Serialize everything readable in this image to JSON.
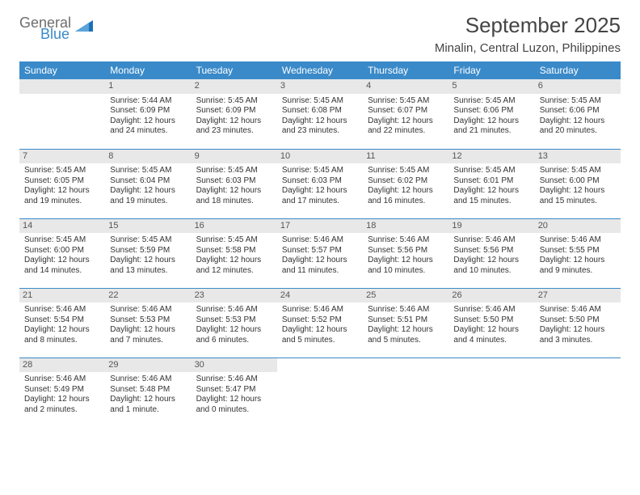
{
  "logo": {
    "general": "General",
    "blue": "Blue",
    "tri_color": "#1d6fb8"
  },
  "title": "September 2025",
  "subtitle": "Minalin, Central Luzon, Philippines",
  "colors": {
    "header_bg": "#3a8ac9",
    "header_fg": "#ffffff",
    "daynum_bg": "#e8e8e8",
    "row_divider": "#3a8ac9",
    "body_text": "#333333"
  },
  "fonts": {
    "title_pt": 26,
    "subtitle_pt": 15,
    "th_pt": 12,
    "daynum_pt": 11,
    "cell_pt": 10
  },
  "day_headers": [
    "Sunday",
    "Monday",
    "Tuesday",
    "Wednesday",
    "Thursday",
    "Friday",
    "Saturday"
  ],
  "weeks": [
    [
      null,
      {
        "n": "1",
        "sr": "Sunrise: 5:44 AM",
        "ss": "Sunset: 6:09 PM",
        "d1": "Daylight: 12 hours",
        "d2": "and 24 minutes."
      },
      {
        "n": "2",
        "sr": "Sunrise: 5:45 AM",
        "ss": "Sunset: 6:09 PM",
        "d1": "Daylight: 12 hours",
        "d2": "and 23 minutes."
      },
      {
        "n": "3",
        "sr": "Sunrise: 5:45 AM",
        "ss": "Sunset: 6:08 PM",
        "d1": "Daylight: 12 hours",
        "d2": "and 23 minutes."
      },
      {
        "n": "4",
        "sr": "Sunrise: 5:45 AM",
        "ss": "Sunset: 6:07 PM",
        "d1": "Daylight: 12 hours",
        "d2": "and 22 minutes."
      },
      {
        "n": "5",
        "sr": "Sunrise: 5:45 AM",
        "ss": "Sunset: 6:06 PM",
        "d1": "Daylight: 12 hours",
        "d2": "and 21 minutes."
      },
      {
        "n": "6",
        "sr": "Sunrise: 5:45 AM",
        "ss": "Sunset: 6:06 PM",
        "d1": "Daylight: 12 hours",
        "d2": "and 20 minutes."
      }
    ],
    [
      {
        "n": "7",
        "sr": "Sunrise: 5:45 AM",
        "ss": "Sunset: 6:05 PM",
        "d1": "Daylight: 12 hours",
        "d2": "and 19 minutes."
      },
      {
        "n": "8",
        "sr": "Sunrise: 5:45 AM",
        "ss": "Sunset: 6:04 PM",
        "d1": "Daylight: 12 hours",
        "d2": "and 19 minutes."
      },
      {
        "n": "9",
        "sr": "Sunrise: 5:45 AM",
        "ss": "Sunset: 6:03 PM",
        "d1": "Daylight: 12 hours",
        "d2": "and 18 minutes."
      },
      {
        "n": "10",
        "sr": "Sunrise: 5:45 AM",
        "ss": "Sunset: 6:03 PM",
        "d1": "Daylight: 12 hours",
        "d2": "and 17 minutes."
      },
      {
        "n": "11",
        "sr": "Sunrise: 5:45 AM",
        "ss": "Sunset: 6:02 PM",
        "d1": "Daylight: 12 hours",
        "d2": "and 16 minutes."
      },
      {
        "n": "12",
        "sr": "Sunrise: 5:45 AM",
        "ss": "Sunset: 6:01 PM",
        "d1": "Daylight: 12 hours",
        "d2": "and 15 minutes."
      },
      {
        "n": "13",
        "sr": "Sunrise: 5:45 AM",
        "ss": "Sunset: 6:00 PM",
        "d1": "Daylight: 12 hours",
        "d2": "and 15 minutes."
      }
    ],
    [
      {
        "n": "14",
        "sr": "Sunrise: 5:45 AM",
        "ss": "Sunset: 6:00 PM",
        "d1": "Daylight: 12 hours",
        "d2": "and 14 minutes."
      },
      {
        "n": "15",
        "sr": "Sunrise: 5:45 AM",
        "ss": "Sunset: 5:59 PM",
        "d1": "Daylight: 12 hours",
        "d2": "and 13 minutes."
      },
      {
        "n": "16",
        "sr": "Sunrise: 5:45 AM",
        "ss": "Sunset: 5:58 PM",
        "d1": "Daylight: 12 hours",
        "d2": "and 12 minutes."
      },
      {
        "n": "17",
        "sr": "Sunrise: 5:46 AM",
        "ss": "Sunset: 5:57 PM",
        "d1": "Daylight: 12 hours",
        "d2": "and 11 minutes."
      },
      {
        "n": "18",
        "sr": "Sunrise: 5:46 AM",
        "ss": "Sunset: 5:56 PM",
        "d1": "Daylight: 12 hours",
        "d2": "and 10 minutes."
      },
      {
        "n": "19",
        "sr": "Sunrise: 5:46 AM",
        "ss": "Sunset: 5:56 PM",
        "d1": "Daylight: 12 hours",
        "d2": "and 10 minutes."
      },
      {
        "n": "20",
        "sr": "Sunrise: 5:46 AM",
        "ss": "Sunset: 5:55 PM",
        "d1": "Daylight: 12 hours",
        "d2": "and 9 minutes."
      }
    ],
    [
      {
        "n": "21",
        "sr": "Sunrise: 5:46 AM",
        "ss": "Sunset: 5:54 PM",
        "d1": "Daylight: 12 hours",
        "d2": "and 8 minutes."
      },
      {
        "n": "22",
        "sr": "Sunrise: 5:46 AM",
        "ss": "Sunset: 5:53 PM",
        "d1": "Daylight: 12 hours",
        "d2": "and 7 minutes."
      },
      {
        "n": "23",
        "sr": "Sunrise: 5:46 AM",
        "ss": "Sunset: 5:53 PM",
        "d1": "Daylight: 12 hours",
        "d2": "and 6 minutes."
      },
      {
        "n": "24",
        "sr": "Sunrise: 5:46 AM",
        "ss": "Sunset: 5:52 PM",
        "d1": "Daylight: 12 hours",
        "d2": "and 5 minutes."
      },
      {
        "n": "25",
        "sr": "Sunrise: 5:46 AM",
        "ss": "Sunset: 5:51 PM",
        "d1": "Daylight: 12 hours",
        "d2": "and 5 minutes."
      },
      {
        "n": "26",
        "sr": "Sunrise: 5:46 AM",
        "ss": "Sunset: 5:50 PM",
        "d1": "Daylight: 12 hours",
        "d2": "and 4 minutes."
      },
      {
        "n": "27",
        "sr": "Sunrise: 5:46 AM",
        "ss": "Sunset: 5:50 PM",
        "d1": "Daylight: 12 hours",
        "d2": "and 3 minutes."
      }
    ],
    [
      {
        "n": "28",
        "sr": "Sunrise: 5:46 AM",
        "ss": "Sunset: 5:49 PM",
        "d1": "Daylight: 12 hours",
        "d2": "and 2 minutes."
      },
      {
        "n": "29",
        "sr": "Sunrise: 5:46 AM",
        "ss": "Sunset: 5:48 PM",
        "d1": "Daylight: 12 hours",
        "d2": "and 1 minute."
      },
      {
        "n": "30",
        "sr": "Sunrise: 5:46 AM",
        "ss": "Sunset: 5:47 PM",
        "d1": "Daylight: 12 hours",
        "d2": "and 0 minutes."
      },
      null,
      null,
      null,
      null
    ]
  ]
}
